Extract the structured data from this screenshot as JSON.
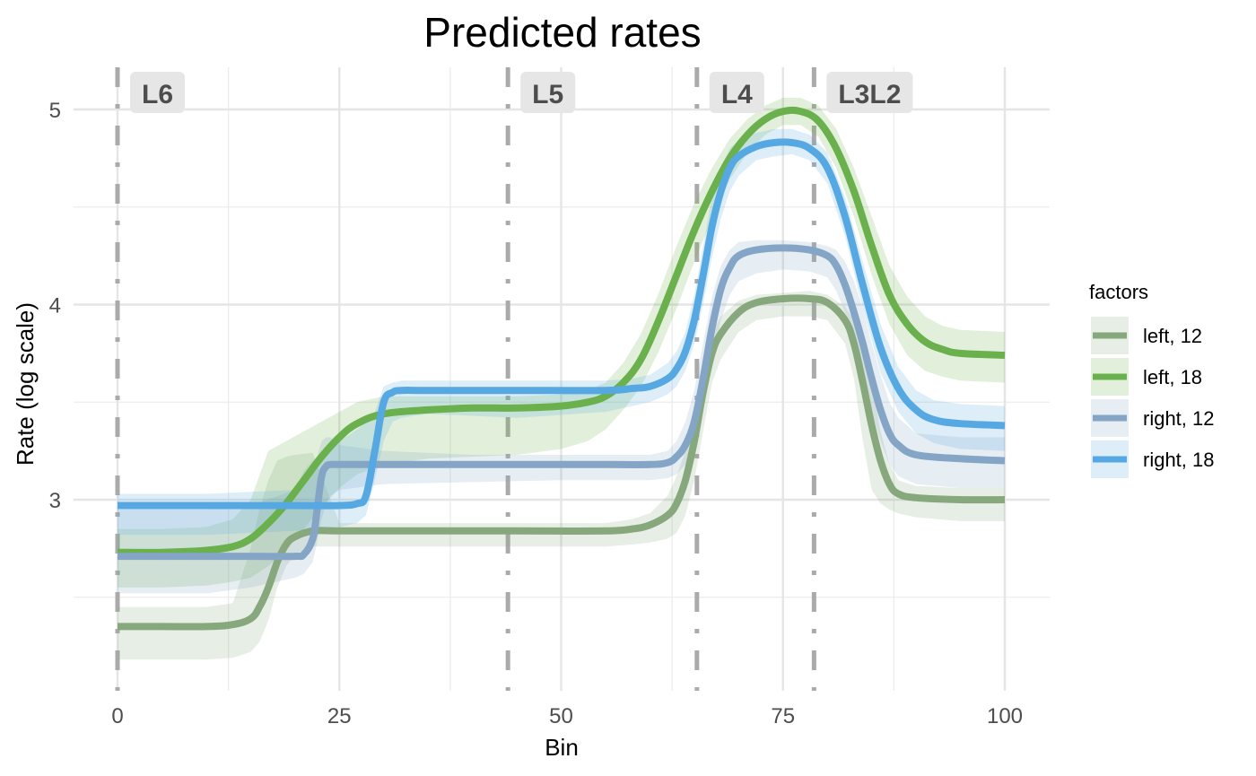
{
  "chart_data": {
    "type": "line",
    "title": "Predicted rates",
    "xlabel": "Bin",
    "ylabel": "Rate (log scale)",
    "xlim": [
      -4,
      105
    ],
    "ylim": [
      2.04,
      5.2
    ],
    "x_ticks": [
      0,
      25,
      50,
      75,
      100
    ],
    "x_tick_labels": [
      "0",
      "25",
      "50",
      "75",
      "100"
    ],
    "x_minor_ticks": [
      12.5,
      37.5,
      62.5,
      87.5
    ],
    "y_ticks": [
      3,
      4,
      5
    ],
    "y_tick_labels": [
      "3",
      "4",
      "5"
    ],
    "y_minor_ticks": [
      2.5,
      3.5,
      4.5
    ],
    "grid": true,
    "legend": {
      "title": "factors",
      "position": "right"
    },
    "regions": [
      {
        "label": "L6",
        "x": 0
      },
      {
        "label": "L5",
        "x": 44
      },
      {
        "label": "L4",
        "x": 65.3
      },
      {
        "label": "L3L2",
        "x": 78.5
      }
    ],
    "region_line_color": "#aaaaaa",
    "series": [
      {
        "name": "left, 12",
        "color": "#86a87c",
        "fill": "#e7ede4",
        "x": [
          0,
          5,
          10,
          13,
          15,
          16,
          17,
          18,
          19,
          20,
          22,
          25,
          35,
          45,
          55,
          58,
          60,
          62,
          63,
          64,
          65,
          66,
          67,
          68,
          70,
          72,
          75,
          78,
          80,
          82,
          83,
          84,
          85,
          86,
          87,
          88,
          90,
          95,
          100
        ],
        "y": [
          2.35,
          2.35,
          2.35,
          2.36,
          2.39,
          2.45,
          2.55,
          2.68,
          2.77,
          2.81,
          2.84,
          2.84,
          2.84,
          2.84,
          2.84,
          2.85,
          2.87,
          2.92,
          2.98,
          3.1,
          3.3,
          3.55,
          3.75,
          3.85,
          3.96,
          4.01,
          4.03,
          4.03,
          4.01,
          3.92,
          3.8,
          3.6,
          3.38,
          3.2,
          3.08,
          3.03,
          3.01,
          3.0,
          3.0
        ],
        "lower": [
          2.18,
          2.18,
          2.18,
          2.19,
          2.22,
          2.27,
          2.38,
          2.55,
          2.66,
          2.72,
          2.76,
          2.76,
          2.76,
          2.76,
          2.76,
          2.77,
          2.78,
          2.8,
          2.83,
          2.92,
          3.1,
          3.35,
          3.6,
          3.72,
          3.86,
          3.92,
          3.94,
          3.94,
          3.92,
          3.8,
          3.62,
          3.3,
          3.05,
          2.98,
          2.95,
          2.93,
          2.91,
          2.89,
          2.89
        ],
        "upper": [
          2.45,
          2.45,
          2.45,
          2.47,
          2.75,
          2.95,
          3.1,
          3.2,
          3.22,
          3.23,
          3.24,
          2.88,
          2.88,
          2.88,
          2.88,
          2.9,
          2.93,
          3.02,
          3.12,
          3.25,
          3.45,
          3.7,
          3.85,
          3.94,
          4.02,
          4.05,
          4.06,
          4.07,
          4.05,
          3.99,
          3.92,
          3.82,
          3.6,
          3.35,
          3.18,
          3.1,
          3.07,
          3.06,
          3.06
        ]
      },
      {
        "name": "left, 18",
        "color": "#6ab04c",
        "fill": "#e3efdc",
        "x": [
          0,
          5,
          10,
          13,
          15,
          17,
          19,
          21,
          23,
          25,
          27,
          30,
          35,
          40,
          45,
          50,
          53,
          55,
          57,
          59,
          61,
          63,
          65,
          67,
          69,
          71,
          73,
          75,
          77,
          79,
          81,
          83,
          85,
          87,
          89,
          91,
          93,
          95,
          100
        ],
        "y": [
          2.73,
          2.73,
          2.74,
          2.76,
          2.8,
          2.88,
          2.98,
          3.1,
          3.22,
          3.32,
          3.39,
          3.44,
          3.46,
          3.47,
          3.47,
          3.48,
          3.5,
          3.53,
          3.6,
          3.72,
          3.92,
          4.15,
          4.38,
          4.58,
          4.75,
          4.87,
          4.95,
          4.99,
          4.99,
          4.94,
          4.8,
          4.58,
          4.3,
          4.05,
          3.9,
          3.81,
          3.77,
          3.75,
          3.74
        ],
        "lower": [
          2.55,
          2.55,
          2.56,
          2.58,
          2.6,
          2.66,
          2.74,
          2.85,
          2.96,
          3.06,
          3.13,
          3.18,
          3.21,
          3.22,
          3.23,
          3.26,
          3.3,
          3.36,
          3.46,
          3.58,
          3.76,
          3.98,
          4.22,
          4.44,
          4.64,
          4.78,
          4.87,
          4.92,
          4.92,
          4.86,
          4.7,
          4.45,
          4.15,
          3.9,
          3.74,
          3.66,
          3.63,
          3.61,
          3.6
        ],
        "upper": [
          2.85,
          2.85,
          2.86,
          2.9,
          3.0,
          3.25,
          3.3,
          3.35,
          3.4,
          3.45,
          3.5,
          3.53,
          3.53,
          3.53,
          3.53,
          3.54,
          3.56,
          3.6,
          3.7,
          3.85,
          4.06,
          4.3,
          4.52,
          4.7,
          4.85,
          4.95,
          5.02,
          5.06,
          5.06,
          5.02,
          4.9,
          4.7,
          4.45,
          4.2,
          4.04,
          3.94,
          3.89,
          3.87,
          3.86
        ]
      },
      {
        "name": "right, 12",
        "color": "#84a5c5",
        "fill": "#e6ebf3",
        "x": [
          0,
          5,
          10,
          15,
          20,
          21,
          22,
          22.5,
          23,
          23.5,
          24,
          25,
          30,
          40,
          50,
          55,
          60,
          62,
          63,
          64,
          65,
          66,
          67,
          68,
          69,
          70,
          72,
          75,
          78,
          80,
          81,
          82,
          83,
          84,
          85,
          86,
          87,
          88,
          90,
          95,
          100
        ],
        "y": [
          2.71,
          2.71,
          2.71,
          2.71,
          2.71,
          2.72,
          2.8,
          2.95,
          3.12,
          3.17,
          3.18,
          3.18,
          3.18,
          3.18,
          3.18,
          3.18,
          3.18,
          3.19,
          3.22,
          3.28,
          3.4,
          3.62,
          3.88,
          4.08,
          4.19,
          4.25,
          4.28,
          4.29,
          4.28,
          4.25,
          4.2,
          4.1,
          3.96,
          3.8,
          3.62,
          3.46,
          3.34,
          3.28,
          3.23,
          3.21,
          3.2
        ],
        "lower": [
          2.52,
          2.52,
          2.52,
          2.55,
          2.6,
          2.62,
          2.68,
          2.78,
          2.9,
          2.98,
          3.02,
          3.05,
          3.08,
          3.09,
          3.1,
          3.1,
          3.1,
          3.11,
          3.13,
          3.18,
          3.26,
          3.45,
          3.7,
          3.92,
          4.05,
          4.12,
          4.16,
          4.18,
          4.17,
          4.14,
          4.07,
          3.96,
          3.8,
          3.62,
          3.45,
          3.3,
          3.18,
          3.12,
          3.08,
          3.06,
          3.06
        ],
        "upper": [
          2.95,
          2.95,
          2.95,
          2.97,
          3.05,
          3.15,
          3.2,
          3.22,
          3.3,
          3.32,
          3.32,
          3.28,
          3.25,
          3.23,
          3.23,
          3.23,
          3.23,
          3.25,
          3.3,
          3.4,
          3.56,
          3.8,
          4.04,
          4.2,
          4.28,
          4.32,
          4.33,
          4.33,
          4.32,
          4.3,
          4.28,
          4.22,
          4.12,
          3.98,
          3.8,
          3.64,
          3.5,
          3.42,
          3.34,
          3.32,
          3.32
        ]
      },
      {
        "name": "right, 18",
        "color": "#56a8e3",
        "fill": "#dcebf9",
        "x": [
          0,
          5,
          10,
          20,
          25,
          27,
          28,
          29,
          30,
          31,
          32,
          35,
          45,
          55,
          58,
          60,
          62,
          63,
          64,
          65,
          66,
          67,
          68,
          69,
          70,
          72,
          74,
          76,
          78,
          80,
          82,
          84,
          86,
          88,
          90,
          92,
          95,
          100
        ],
        "y": [
          2.97,
          2.97,
          2.97,
          2.97,
          2.97,
          2.98,
          3.02,
          3.25,
          3.5,
          3.55,
          3.56,
          3.56,
          3.56,
          3.56,
          3.57,
          3.58,
          3.62,
          3.67,
          3.76,
          3.92,
          4.15,
          4.4,
          4.58,
          4.7,
          4.76,
          4.81,
          4.83,
          4.83,
          4.8,
          4.7,
          4.45,
          4.1,
          3.78,
          3.57,
          3.46,
          3.41,
          3.39,
          3.38
        ],
        "lower": [
          2.82,
          2.82,
          2.82,
          2.84,
          2.86,
          2.88,
          2.92,
          3.1,
          3.3,
          3.4,
          3.42,
          3.44,
          3.42,
          3.45,
          3.48,
          3.5,
          3.54,
          3.58,
          3.66,
          3.8,
          4.0,
          4.24,
          4.44,
          4.58,
          4.66,
          4.74,
          4.76,
          4.77,
          4.74,
          4.62,
          4.35,
          3.98,
          3.65,
          3.45,
          3.34,
          3.29,
          3.26,
          3.25
        ],
        "upper": [
          3.03,
          3.03,
          3.03,
          3.05,
          3.3,
          3.36,
          3.4,
          3.45,
          3.58,
          3.6,
          3.61,
          3.61,
          3.61,
          3.61,
          3.62,
          3.64,
          3.7,
          3.76,
          3.86,
          4.05,
          4.3,
          4.55,
          4.7,
          4.8,
          4.84,
          4.88,
          4.9,
          4.9,
          4.87,
          4.78,
          4.55,
          4.22,
          3.9,
          3.68,
          3.56,
          3.51,
          3.49,
          3.48
        ]
      }
    ]
  }
}
